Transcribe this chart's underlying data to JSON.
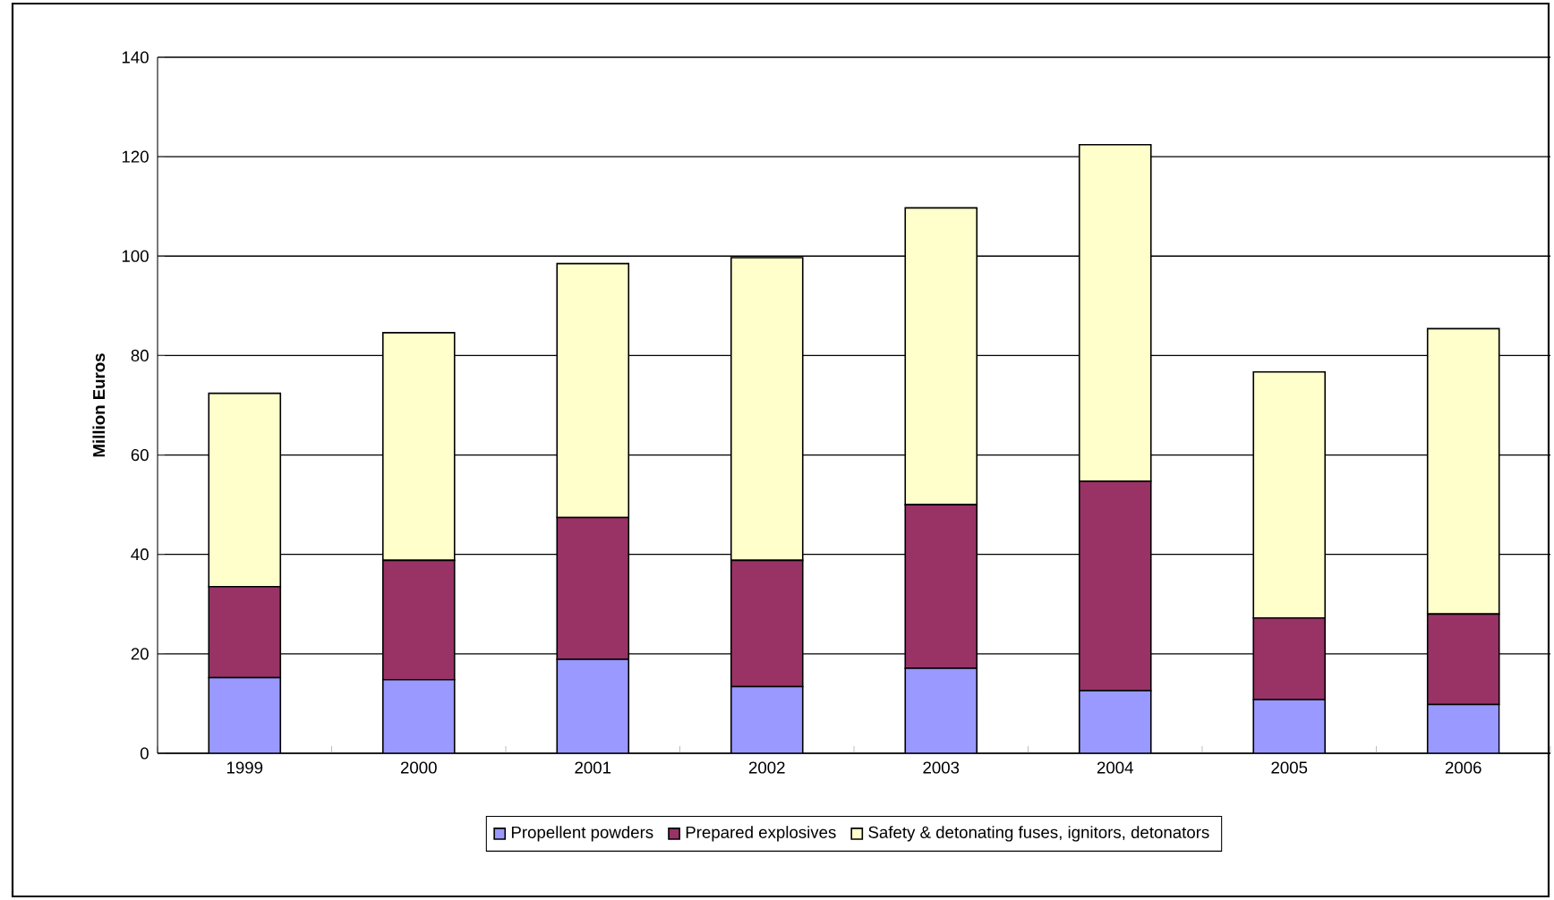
{
  "chart_data": {
    "type": "bar",
    "stacked": true,
    "ylabel": "Million Euros",
    "categories": [
      "1999",
      "2000",
      "2001",
      "2002",
      "2003",
      "2004",
      "2005",
      "2006"
    ],
    "series": [
      {
        "name": "Propellent powders",
        "color": "#9999ff",
        "values": [
          15.2,
          14.8,
          18.9,
          13.4,
          17.1,
          12.6,
          10.8,
          9.8
        ]
      },
      {
        "name": "Prepared explosives",
        "color": "#993366",
        "values": [
          18.3,
          24.0,
          28.5,
          25.4,
          32.9,
          42.1,
          16.4,
          18.2
        ]
      },
      {
        "name": "Safety & detonating fuses, ignitors, detonators",
        "color": "#ffffcc",
        "values": [
          38.9,
          45.8,
          51.1,
          60.9,
          59.7,
          67.7,
          49.5,
          57.4
        ]
      }
    ],
    "ylim": [
      0,
      140
    ],
    "yticks": [
      0,
      20,
      40,
      60,
      80,
      100,
      120,
      140
    ],
    "grid": "y",
    "legend": "bottom"
  }
}
